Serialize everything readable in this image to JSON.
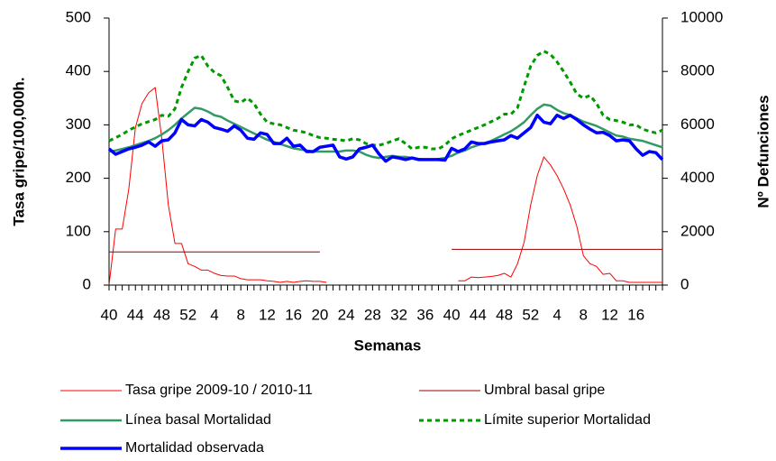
{
  "chart_data": {
    "type": "line",
    "x_label": "Semanas",
    "y_label": "Tasa gripe/100,000h.",
    "y2_label": "Nº Defunciones",
    "categories": [
      "40",
      null,
      null,
      null,
      "44",
      null,
      null,
      null,
      "48",
      null,
      null,
      null,
      "52",
      null,
      null,
      null,
      "4",
      null,
      null,
      null,
      "8",
      null,
      null,
      null,
      "12",
      null,
      null,
      null,
      "16",
      null,
      null,
      null,
      "20",
      null,
      null,
      null,
      "24",
      null,
      null,
      null,
      "28",
      null,
      null,
      null,
      "32",
      null,
      null,
      null,
      "36",
      null,
      null,
      null,
      "40",
      null,
      null,
      null,
      "44",
      null,
      null,
      null,
      "48",
      null,
      null,
      null,
      "52",
      null,
      null,
      null,
      "4",
      null,
      null,
      null,
      "8",
      null,
      null,
      null,
      "12",
      null,
      null,
      null,
      "16",
      null,
      null,
      null,
      null
    ],
    "ylim": [
      0,
      500
    ],
    "yticks": [
      0,
      100,
      200,
      300,
      400,
      500
    ],
    "y2lim": [
      0,
      10000
    ],
    "y2ticks": [
      0,
      2000,
      4000,
      6000,
      8000,
      10000
    ],
    "legend": "bottom",
    "series": [
      {
        "name": "Tasa gripe 2009-10 / 2010-11",
        "color": "#ff0000",
        "width": 1,
        "dashed": false,
        "values": [
          0,
          105,
          105,
          180,
          295,
          340,
          360,
          370,
          275,
          150,
          78,
          78,
          40,
          35,
          28,
          28,
          22,
          18,
          17,
          17,
          12,
          10,
          10,
          10,
          8,
          7,
          5,
          7,
          5,
          7,
          8,
          7,
          7,
          5,
          null,
          null,
          null,
          null,
          null,
          null,
          null,
          null,
          null,
          null,
          null,
          null,
          null,
          null,
          null,
          null,
          null,
          null,
          null,
          8,
          8,
          15,
          14,
          15,
          16,
          18,
          22,
          15,
          40,
          80,
          150,
          205,
          240,
          225,
          205,
          180,
          150,
          110,
          55,
          40,
          35,
          20,
          22,
          8,
          8,
          5,
          5,
          5,
          5,
          5,
          5
        ]
      },
      {
        "name": "Umbral basal gripe",
        "color": "#990000",
        "width": 1,
        "dashed": false,
        "values": [
          62,
          62,
          62,
          62,
          62,
          62,
          62,
          62,
          62,
          62,
          62,
          62,
          62,
          62,
          62,
          62,
          62,
          62,
          62,
          62,
          62,
          62,
          62,
          62,
          62,
          62,
          62,
          62,
          62,
          62,
          62,
          62,
          62,
          null,
          null,
          null,
          null,
          null,
          null,
          null,
          null,
          null,
          null,
          null,
          null,
          null,
          null,
          null,
          null,
          null,
          null,
          null,
          67,
          67,
          67,
          67,
          67,
          67,
          67,
          67,
          67,
          67,
          67,
          67,
          67,
          67,
          67,
          67,
          67,
          67,
          67,
          67,
          67,
          67,
          67,
          67,
          67,
          67,
          67,
          67,
          67,
          67,
          67,
          67,
          67
        ]
      },
      {
        "name": "Línea basal Mortalidad",
        "color": "#339966",
        "width": 2.5,
        "dashed": false,
        "axis": "y2",
        "values": [
          5000,
          5040,
          5100,
          5160,
          5240,
          5320,
          5400,
          5500,
          5640,
          5800,
          6000,
          6240,
          6440,
          6640,
          6600,
          6500,
          6360,
          6300,
          6160,
          6040,
          5920,
          5800,
          5680,
          5560,
          5440,
          5360,
          5280,
          5200,
          5120,
          5080,
          5040,
          5000,
          5000,
          5000,
          5000,
          5000,
          5040,
          5040,
          5000,
          4880,
          4800,
          4760,
          4800,
          4840,
          4800,
          4800,
          4760,
          4720,
          4700,
          4700,
          4720,
          4760,
          4840,
          4960,
          5040,
          5160,
          5240,
          5320,
          5400,
          5520,
          5640,
          5760,
          5920,
          6100,
          6360,
          6600,
          6760,
          6720,
          6560,
          6440,
          6360,
          6240,
          6120,
          6040,
          5960,
          5840,
          5720,
          5600,
          5560,
          5480,
          5440,
          5400,
          5320,
          5240,
          5160
        ]
      },
      {
        "name": "Límite superior Mortalidad",
        "color": "#009900",
        "width": 3,
        "dashed": true,
        "axis": "y2",
        "values": [
          5400,
          5520,
          5640,
          5800,
          5920,
          6040,
          6120,
          6200,
          6360,
          6320,
          6600,
          7400,
          8000,
          8500,
          8600,
          8200,
          7960,
          7840,
          7400,
          6900,
          6840,
          7000,
          6800,
          6400,
          6100,
          6040,
          6000,
          5900,
          5800,
          5760,
          5700,
          5600,
          5520,
          5500,
          5460,
          5440,
          5400,
          5480,
          5440,
          5300,
          5240,
          5240,
          5300,
          5400,
          5480,
          5300,
          5100,
          5160,
          5160,
          5100,
          5100,
          5240,
          5480,
          5600,
          5700,
          5800,
          5900,
          6000,
          6120,
          6240,
          6400,
          6400,
          6640,
          7440,
          8200,
          8600,
          8760,
          8640,
          8360,
          8000,
          7600,
          7160,
          7000,
          7100,
          6800,
          6360,
          6200,
          6160,
          6100,
          6000,
          6000,
          5840,
          5760,
          5700,
          5800
        ]
      },
      {
        "name": "Mortalidad observada",
        "color": "#0000ff",
        "width": 3.5,
        "dashed": false,
        "axis": "y2",
        "values": [
          5100,
          4900,
          5000,
          5100,
          5160,
          5240,
          5360,
          5200,
          5400,
          5440,
          5700,
          6200,
          6000,
          5960,
          6200,
          6100,
          5900,
          5840,
          5760,
          5960,
          5800,
          5500,
          5460,
          5700,
          5640,
          5300,
          5300,
          5500,
          5200,
          5240,
          5000,
          5000,
          5160,
          5200,
          5240,
          4800,
          4720,
          4800,
          5100,
          5160,
          5240,
          4900,
          4640,
          4800,
          4760,
          4700,
          4760,
          4700,
          4700,
          4700,
          4700,
          4680,
          5120,
          5000,
          5100,
          5360,
          5300,
          5300,
          5360,
          5400,
          5440,
          5600,
          5500,
          5700,
          5900,
          6360,
          6100,
          6040,
          6360,
          6240,
          6360,
          6200,
          6000,
          5840,
          5700,
          5720,
          5600,
          5400,
          5440,
          5400,
          5100,
          4860,
          5000,
          4960,
          4700
        ]
      }
    ]
  }
}
